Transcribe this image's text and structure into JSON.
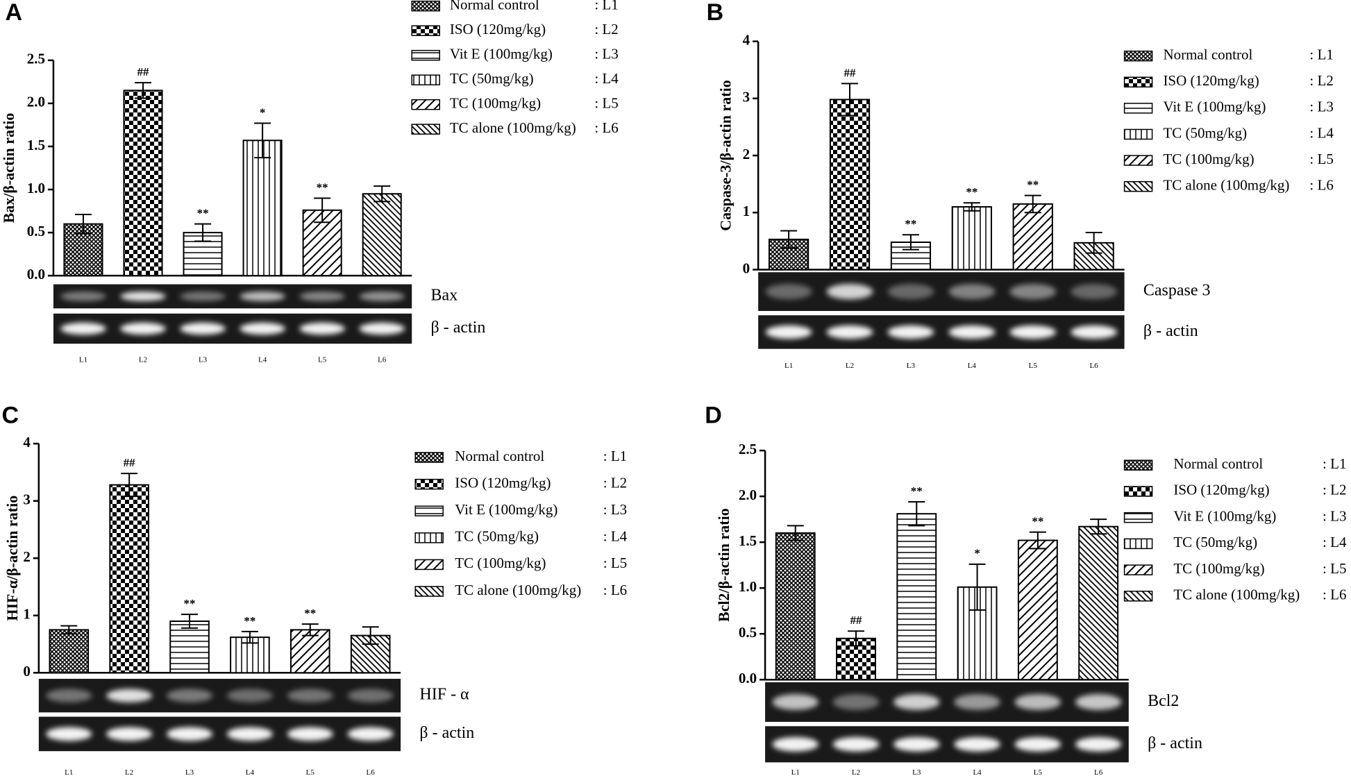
{
  "chart_data": [
    {
      "type": "bar",
      "panel": "A",
      "ylabel": "Bax/β-actin ratio",
      "categories": [
        "Normal control",
        "ISO (120mg/kg)",
        "Vit E (100mg/kg)",
        "TC (50mg/kg)",
        "TC (100mg/kg)",
        "TC alone (100mg/kg)"
      ],
      "legend_codes": [
        ": L1",
        ": L2",
        ": L3",
        ": L4",
        ": L5",
        ": L6"
      ],
      "lanes": [
        "L1",
        "L2",
        "L3",
        "L4",
        "L5",
        "L6"
      ],
      "values": [
        0.6,
        2.15,
        0.5,
        1.57,
        0.76,
        0.95
      ],
      "errors": [
        0.11,
        0.09,
        0.1,
        0.2,
        0.14,
        0.09
      ],
      "annotations": [
        null,
        "##",
        "**",
        "*",
        "**",
        null
      ],
      "gel_labels": [
        "Bax",
        "β - actin"
      ],
      "ylim": [
        0,
        2.5
      ],
      "yticks": [
        {
          "value": 0,
          "label": "0.0"
        },
        0.5,
        {
          "value": 1,
          "label": "1.0"
        },
        1.5,
        {
          "value": 2,
          "label": "2.0"
        },
        2.5
      ]
    },
    {
      "type": "bar",
      "panel": "B",
      "ylabel": "Caspase-3/β-actin ratio",
      "categories": [
        "Normal control",
        "ISO (120mg/kg)",
        "Vit E (100mg/kg)",
        "TC (50mg/kg)",
        "TC (100mg/kg)",
        "TC alone (100mg/kg)"
      ],
      "legend_codes": [
        ": L1",
        ": L2",
        ": L3",
        ": L4",
        ": L5",
        ": L6"
      ],
      "lanes": [
        "L1",
        "L2",
        "L3",
        "L4",
        "L5",
        "L6"
      ],
      "values": [
        0.53,
        2.98,
        0.48,
        1.1,
        1.15,
        0.47
      ],
      "errors": [
        0.15,
        0.28,
        0.13,
        0.07,
        0.15,
        0.18
      ],
      "annotations": [
        null,
        "##",
        "**",
        "**",
        "**",
        null
      ],
      "gel_labels": [
        "Caspase 3",
        "β - actin"
      ],
      "ylim": [
        0,
        4
      ],
      "yticks": [
        0,
        1,
        2,
        3,
        4
      ]
    },
    {
      "type": "bar",
      "panel": "C",
      "ylabel": "HIF-α/β-actin ratio",
      "categories": [
        "Normal control",
        "ISO (120mg/kg)",
        "Vit E (100mg/kg)",
        "TC (50mg/kg)",
        "TC (100mg/kg)",
        "TC alone (100mg/kg)"
      ],
      "legend_codes": [
        ": L1",
        ": L2",
        ": L3",
        ": L4",
        ": L5",
        ": L6"
      ],
      "lanes": [
        "L1",
        "L2",
        "L3",
        "L4",
        "L5",
        "L6"
      ],
      "values": [
        0.75,
        3.28,
        0.9,
        0.62,
        0.75,
        0.65
      ],
      "errors": [
        0.07,
        0.2,
        0.12,
        0.1,
        0.1,
        0.15
      ],
      "annotations": [
        null,
        "##",
        "**",
        "**",
        "**",
        null
      ],
      "gel_labels": [
        "HIF - α",
        "β - actin"
      ],
      "ylim": [
        0,
        4
      ],
      "yticks": [
        0,
        1,
        2,
        3,
        4
      ]
    },
    {
      "type": "bar",
      "panel": "D",
      "ylabel": "Bcl2/β-actin ratio",
      "categories": [
        "Normal control",
        "ISO (120mg/kg)",
        "Vit E (100mg/kg)",
        "TC (50mg/kg)",
        "TC (100mg/kg)",
        "TC alone (100mg/kg)"
      ],
      "legend_codes": [
        ": L1",
        ": L2",
        ": L3",
        ": L4",
        ": L5",
        ": L6"
      ],
      "lanes": [
        "L1",
        "L2",
        "L3",
        "L4",
        "L5",
        "L6"
      ],
      "values": [
        1.6,
        0.45,
        1.81,
        1.01,
        1.52,
        1.67
      ],
      "errors": [
        0.08,
        0.08,
        0.13,
        0.25,
        0.09,
        0.08
      ],
      "annotations": [
        null,
        "##",
        "**",
        "*",
        "**",
        null
      ],
      "gel_labels": [
        "Bcl2",
        "β - actin"
      ],
      "ylim": [
        0,
        2.5
      ],
      "yticks": [
        {
          "value": 0,
          "label": "0.0"
        },
        0.5,
        {
          "value": 1,
          "label": "1.0"
        },
        1.5,
        {
          "value": 2,
          "label": "2.0"
        },
        2.5
      ]
    }
  ]
}
